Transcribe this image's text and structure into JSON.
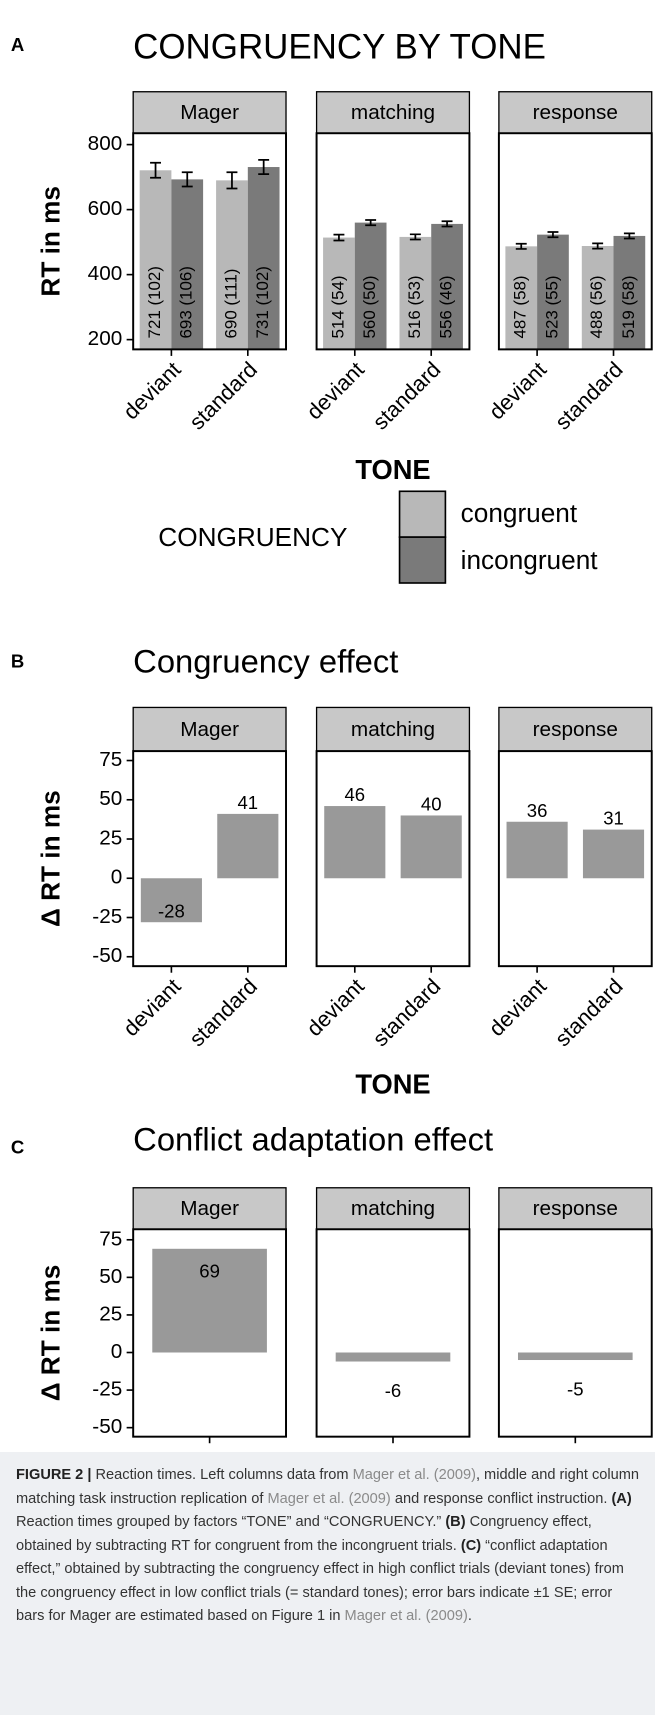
{
  "chart_data": [
    {
      "type": "bar",
      "label": "A",
      "title": "CONGRUENCY BY TONE",
      "y_label": "RT in ms",
      "x_label": "TONE",
      "categories": [
        "deviant",
        "standard"
      ],
      "facets": [
        {
          "name": "Mager",
          "series": [
            {
              "values": [
                721,
                690
              ],
              "errors": [
                23,
                25
              ],
              "value_labels": [
                "721 (102)",
                "690 (111)"
              ]
            },
            {
              "values": [
                693,
                731
              ],
              "errors": [
                22,
                22
              ],
              "value_labels": [
                "693 (106)",
                "731 (102)"
              ]
            }
          ]
        },
        {
          "name": "matching",
          "series": [
            {
              "values": [
                514,
                516
              ],
              "errors": [
                9,
                8
              ],
              "value_labels": [
                "514 (54)",
                "516 (53)"
              ]
            },
            {
              "values": [
                560,
                556
              ],
              "errors": [
                8,
                8
              ],
              "value_labels": [
                "560 (50)",
                "556 (46)"
              ]
            }
          ]
        },
        {
          "name": "response",
          "series": [
            {
              "values": [
                487,
                488
              ],
              "errors": [
                8,
                8
              ],
              "value_labels": [
                "487 (58)",
                "488 (56)"
              ]
            },
            {
              "values": [
                523,
                519
              ],
              "errors": [
                8,
                8
              ],
              "value_labels": [
                "523 (55)",
                "519 (58)"
              ]
            }
          ]
        }
      ],
      "legend": {
        "title": "CONGRUENCY",
        "entries": [
          {
            "name": "congruent",
            "color": "#b8b8b8"
          },
          {
            "name": "incongruent",
            "color": "#7a7a7a"
          }
        ]
      },
      "ylim": [
        170,
        835
      ],
      "yticks": [
        200,
        400,
        600,
        800
      ]
    },
    {
      "type": "bar",
      "label": "B",
      "title": "Congruency effect",
      "y_label": "Δ RT in ms",
      "x_label": "TONE",
      "categories": [
        "deviant",
        "standard"
      ],
      "color": "#999999",
      "facets": [
        {
          "name": "Mager",
          "values": [
            -28,
            41
          ]
        },
        {
          "name": "matching",
          "values": [
            46,
            40
          ]
        },
        {
          "name": "response",
          "values": [
            36,
            31
          ]
        }
      ],
      "ylim": [
        -56,
        81
      ],
      "yticks": [
        -50,
        -25,
        0,
        25,
        50,
        75
      ]
    },
    {
      "type": "bar",
      "label": "C",
      "title": "Conflict adaptation effect",
      "y_label": "Δ RT in ms",
      "categories": [
        null
      ],
      "color": "#999999",
      "facets": [
        {
          "name": "Mager",
          "values": [
            69
          ]
        },
        {
          "name": "matching",
          "values": [
            -6
          ]
        },
        {
          "name": "response",
          "values": [
            -5
          ]
        }
      ],
      "ylim": [
        -56,
        82
      ],
      "yticks": [
        -50,
        -25,
        0,
        25,
        50,
        75
      ]
    }
  ],
  "caption": [
    {
      "text": "FIGURE 2 |",
      "style": "bold"
    },
    {
      "text": " Reaction times. Left columns data from "
    },
    {
      "text": "Mager et al. (2009)",
      "style": "link"
    },
    {
      "text": ", middle and right column matching task instruction replication of "
    },
    {
      "text": "Mager et al. (2009)",
      "style": "link"
    },
    {
      "text": " and response conflict instruction. "
    },
    {
      "text": "(A)",
      "style": "bold"
    },
    {
      "text": " Reaction times grouped by factors “TONE” and “CONGRUENCY.” "
    },
    {
      "text": "(B)",
      "style": "bold"
    },
    {
      "text": " Congruency effect, obtained by subtracting RT for congruent from the incongruent trials. "
    },
    {
      "text": "(C)",
      "style": "bold"
    },
    {
      "text": " “conflict adaptation effect,” obtained by subtracting the congruency effect in high conflict trials (deviant tones) from the congruency effect in low conflict trials (= standard tones); error bars indicate ±1 SE; error bars for Mager are estimated based on Figure 1 in "
    },
    {
      "text": "Mager et al. (2009)",
      "style": "link"
    },
    {
      "text": "."
    }
  ]
}
